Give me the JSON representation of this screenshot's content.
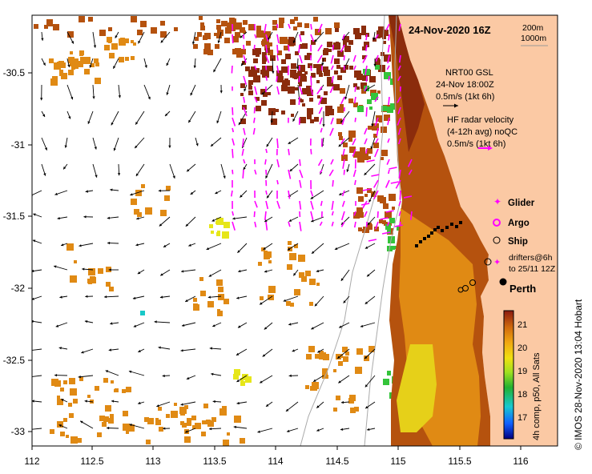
{
  "title": "24-Nov-2020 16Z",
  "isobaths": {
    "a": "200m",
    "b": "1000m"
  },
  "gsl": {
    "line1": "NRT00 GSL",
    "line2": "24-Nov 18:00Z",
    "line3": "0.5m/s (1kt 6h)"
  },
  "hf": {
    "line1": "HF radar velocity",
    "line2": "(4-12h avg) noQC",
    "line3": "0.5m/s (1kt 6h)"
  },
  "legend": {
    "glider": "Glider",
    "argo": "Argo",
    "ship": "Ship",
    "drifters1": "drifters@6h",
    "drifters2": "to 25/11 12Z"
  },
  "city": "Perth",
  "colorbar": {
    "label": "4h comp, p50, All Sats",
    "ticks": [
      "21",
      "20",
      "19",
      "18",
      "17"
    ],
    "min": 16.2,
    "max": 21.6
  },
  "credit": "© IMOS 28-Nov-2020 13:04 Hobart",
  "x_ticks": [
    "112",
    "112.5",
    "113",
    "113.5",
    "114",
    "114.5",
    "115",
    "115.5",
    "116"
  ],
  "y_ticks": [
    "-30.5",
    "-31",
    "-31.5",
    "-32",
    "-32.5",
    "-33"
  ],
  "colors": {
    "land": "#fbc9a4",
    "warm": "#b5520e",
    "hot": "#8b2c0c",
    "mid": "#e08a14",
    "cool": "#e6e619",
    "green": "#34c43a",
    "cyan": "#19c8c8",
    "radar": "#ff00ff"
  }
}
